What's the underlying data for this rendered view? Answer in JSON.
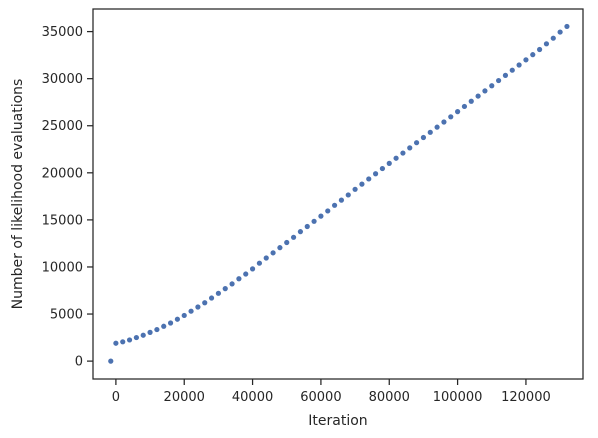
{
  "chart_data": {
    "type": "scatter",
    "xlabel": "Iteration",
    "ylabel": "Number of likelihood evaluations",
    "xlim": [
      -6700,
      136700
    ],
    "ylim": [
      -1900,
      37400
    ],
    "xticks": [
      0,
      20000,
      40000,
      60000,
      80000,
      100000,
      120000
    ],
    "yticks": [
      0,
      5000,
      10000,
      15000,
      20000,
      25000,
      30000,
      35000
    ],
    "marker_color": "#4c72b0",
    "grid": false,
    "series": [
      {
        "points": [
          [
            -1500,
            0
          ],
          [
            0,
            1900
          ],
          [
            2000,
            2050
          ],
          [
            4000,
            2250
          ],
          [
            6000,
            2500
          ],
          [
            8000,
            2750
          ],
          [
            10000,
            3050
          ],
          [
            12000,
            3350
          ],
          [
            14000,
            3700
          ],
          [
            16000,
            4050
          ],
          [
            18000,
            4450
          ],
          [
            20000,
            4850
          ],
          [
            22000,
            5300
          ],
          [
            24000,
            5750
          ],
          [
            26000,
            6200
          ],
          [
            28000,
            6700
          ],
          [
            30000,
            7200
          ],
          [
            32000,
            7700
          ],
          [
            34000,
            8200
          ],
          [
            36000,
            8750
          ],
          [
            38000,
            9250
          ],
          [
            40000,
            9800
          ],
          [
            42000,
            10400
          ],
          [
            44000,
            10950
          ],
          [
            46000,
            11500
          ],
          [
            48000,
            12050
          ],
          [
            50000,
            12600
          ],
          [
            52000,
            13150
          ],
          [
            54000,
            13750
          ],
          [
            56000,
            14300
          ],
          [
            58000,
            14850
          ],
          [
            60000,
            15400
          ],
          [
            62000,
            15950
          ],
          [
            64000,
            16550
          ],
          [
            66000,
            17100
          ],
          [
            68000,
            17650
          ],
          [
            70000,
            18250
          ],
          [
            72000,
            18800
          ],
          [
            74000,
            19350
          ],
          [
            76000,
            19900
          ],
          [
            78000,
            20450
          ],
          [
            80000,
            21000
          ],
          [
            82000,
            21550
          ],
          [
            84000,
            22100
          ],
          [
            86000,
            22650
          ],
          [
            88000,
            23200
          ],
          [
            90000,
            23750
          ],
          [
            92000,
            24300
          ],
          [
            94000,
            24850
          ],
          [
            96000,
            25400
          ],
          [
            98000,
            25950
          ],
          [
            100000,
            26500
          ],
          [
            102000,
            27050
          ],
          [
            104000,
            27600
          ],
          [
            106000,
            28150
          ],
          [
            108000,
            28700
          ],
          [
            110000,
            29250
          ],
          [
            112000,
            29800
          ],
          [
            114000,
            30350
          ],
          [
            116000,
            30900
          ],
          [
            118000,
            31450
          ],
          [
            120000,
            32000
          ],
          [
            122000,
            32550
          ],
          [
            124000,
            33100
          ],
          [
            126000,
            33700
          ],
          [
            128000,
            34300
          ],
          [
            130000,
            34950
          ],
          [
            132000,
            35550
          ]
        ]
      }
    ]
  }
}
